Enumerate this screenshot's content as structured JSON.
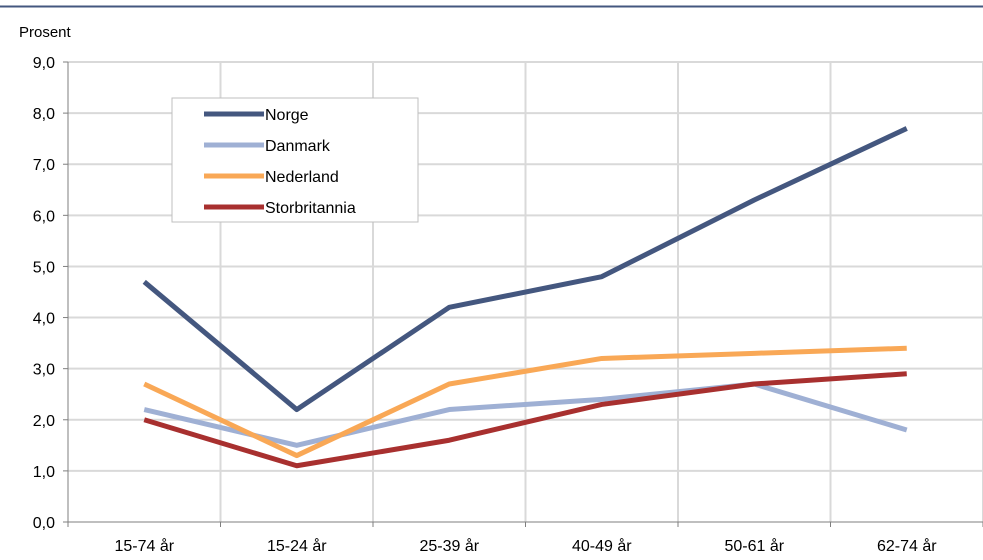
{
  "chart_data": {
    "type": "line",
    "title": "",
    "xlabel": "",
    "ylabel": "Prosent",
    "ylim": [
      0,
      9
    ],
    "yticks": [
      "0,0",
      "1,0",
      "2,0",
      "3,0",
      "4,0",
      "5,0",
      "6,0",
      "7,0",
      "8,0",
      "9,0"
    ],
    "categories": [
      "15-74 år",
      "15-24 år",
      "25-39 år",
      "40-49 år",
      "50-61 år",
      "62-74 år"
    ],
    "grid": true,
    "legend_position": "top-left",
    "series": [
      {
        "name": "Norge",
        "color": "#44577f",
        "values": [
          4.7,
          2.2,
          4.2,
          4.8,
          6.3,
          7.7
        ]
      },
      {
        "name": "Danmark",
        "color": "#9fb0d4",
        "values": [
          2.2,
          1.5,
          2.2,
          2.4,
          2.7,
          1.8
        ]
      },
      {
        "name": "Nederland",
        "color": "#f9a856",
        "values": [
          2.7,
          1.3,
          2.7,
          3.2,
          3.3,
          3.4
        ]
      },
      {
        "name": "Storbritannia",
        "color": "#a8302f",
        "values": [
          2.0,
          1.1,
          1.6,
          2.3,
          2.7,
          2.9
        ]
      }
    ]
  },
  "colors": {
    "top_rule": "#44577f",
    "grid": "#d9d9d9",
    "axis": "#7f7f7f"
  }
}
